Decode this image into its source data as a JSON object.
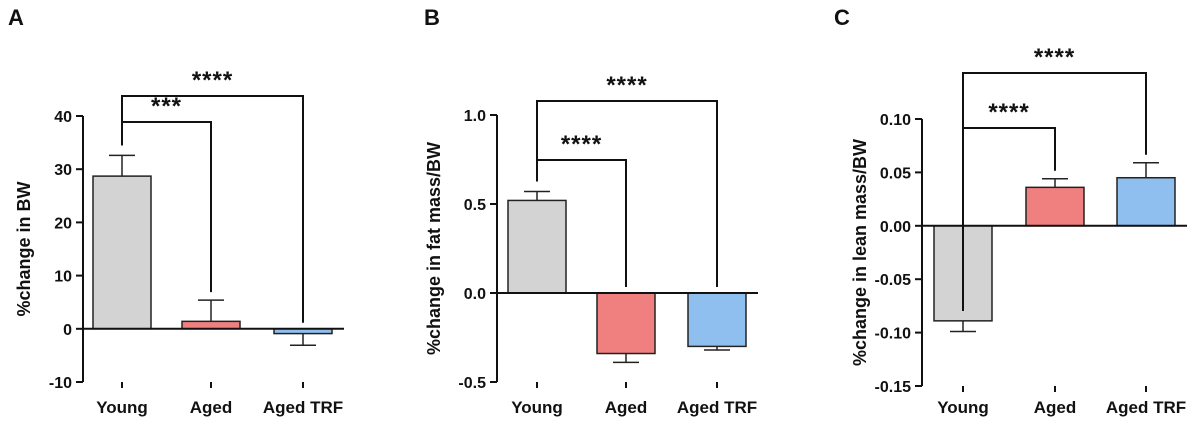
{
  "chart_data": [
    {
      "type": "bar",
      "panel": "A",
      "categories": [
        "Young",
        "Aged",
        "Aged TRF"
      ],
      "values": [
        28.7,
        1.4,
        -0.9
      ],
      "errors": [
        3.9,
        4.0,
        2.2
      ],
      "ylabel": "%change in BW",
      "ylim": [
        -10,
        40
      ],
      "yticks": [
        -10,
        0,
        10,
        20,
        30,
        40
      ],
      "ytick_labels": [
        "-10",
        "0",
        "10",
        "20",
        "30",
        "40"
      ],
      "colors": [
        "#d3d3d3",
        "#f08080",
        "#8fbfee"
      ],
      "grid": false,
      "legend": "none",
      "comparisons": [
        {
          "from": 0,
          "to": 1,
          "label": "***"
        },
        {
          "from": 0,
          "to": 2,
          "label": "****"
        }
      ]
    },
    {
      "type": "bar",
      "panel": "B",
      "categories": [
        "Young",
        "Aged",
        "Aged TRF"
      ],
      "values": [
        0.52,
        -0.34,
        -0.3
      ],
      "errors": [
        0.05,
        0.05,
        0.02
      ],
      "ylabel": "%change in fat mass/BW",
      "ylim": [
        -0.5,
        1.0
      ],
      "yticks": [
        -0.5,
        0.0,
        0.5,
        1.0
      ],
      "ytick_labels": [
        "-0.5",
        "0.0",
        "0.5",
        "1.0"
      ],
      "colors": [
        "#d3d3d3",
        "#f08080",
        "#8fbfee"
      ],
      "grid": false,
      "legend": "none",
      "comparisons": [
        {
          "from": 0,
          "to": 1,
          "label": "****"
        },
        {
          "from": 0,
          "to": 2,
          "label": "****"
        }
      ]
    },
    {
      "type": "bar",
      "panel": "C",
      "categories": [
        "Young",
        "Aged",
        "Aged TRF"
      ],
      "values": [
        -0.089,
        0.036,
        0.045
      ],
      "errors": [
        0.01,
        0.008,
        0.014
      ],
      "ylabel": "%change in lean mass/BW",
      "ylim": [
        -0.15,
        0.1
      ],
      "yticks": [
        -0.15,
        -0.1,
        -0.05,
        0.0,
        0.05,
        0.1
      ],
      "ytick_labels": [
        "-0.15",
        "-0.10",
        "-0.05",
        "0.00",
        "0.05",
        "0.10"
      ],
      "colors": [
        "#d3d3d3",
        "#f08080",
        "#8fbfee"
      ],
      "grid": false,
      "legend": "none",
      "comparisons": [
        {
          "from": 0,
          "to": 1,
          "label": "****"
        },
        {
          "from": 0,
          "to": 2,
          "label": "****"
        }
      ]
    }
  ]
}
